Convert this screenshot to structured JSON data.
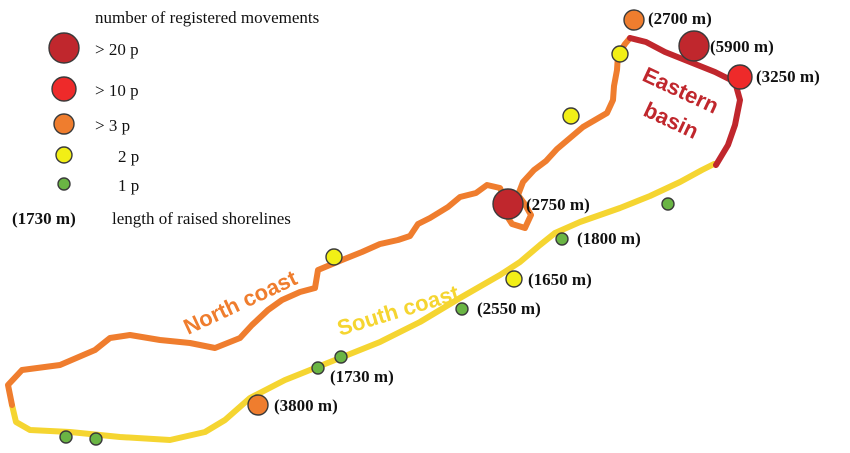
{
  "legend": {
    "title": "number of registered movements",
    "items": [
      {
        "label": "> 20 p",
        "color": "#c0272d"
      },
      {
        "label": "> 10 p",
        "color": "#ee2a2a"
      },
      {
        "label": "> 3 p",
        "color": "#ef7d2e"
      },
      {
        "label": "2 p",
        "color": "#f2ef16"
      },
      {
        "label": "1 p",
        "color": "#6ab544"
      }
    ],
    "length_sample": "(1730 m)",
    "length_note": "length of raised shorelines"
  },
  "coast_labels": {
    "north": "North coast",
    "south": "South coast",
    "eastern_line1": "Eastern",
    "eastern_line2": "basin"
  },
  "colors": {
    "north_coast": "#ef7d2e",
    "south_coast": "#f5d531",
    "eastern_basin": "#c0272d"
  },
  "sites": {
    "s2700": "(2700 m)",
    "s5900": "(5900 m)",
    "s3250": "(3250 m)",
    "s2750": "(2750 m)",
    "s1800": "(1800 m)",
    "s1650": "(1650 m)",
    "s2550": "(2550 m)",
    "s1730": "(1730 m)",
    "s3800": "(3800 m)"
  }
}
